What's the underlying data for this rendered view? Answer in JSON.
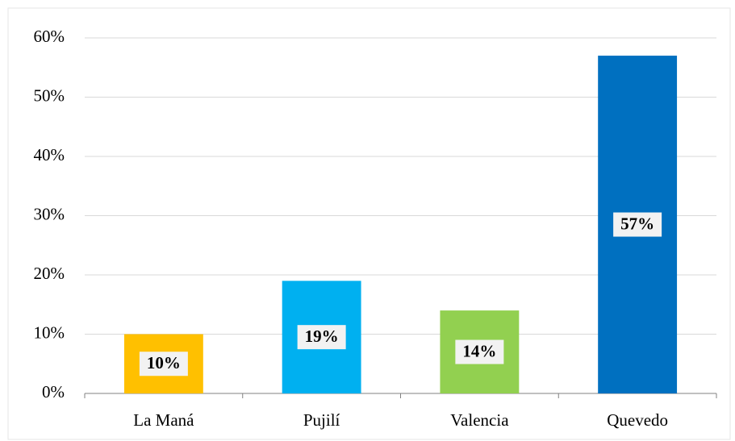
{
  "chart_data": {
    "type": "bar",
    "categories": [
      "La Maná",
      "Pujilí",
      "Valencia",
      "Quevedo"
    ],
    "values": [
      10,
      19,
      14,
      57
    ],
    "value_labels": [
      "10%",
      "19%",
      "14%",
      "57%"
    ],
    "colors": [
      "#ffc000",
      "#00b0f0",
      "#92d050",
      "#0070c0"
    ],
    "ylim": [
      0,
      60
    ],
    "yticks": [
      {
        "value": 0,
        "label": "0%"
      },
      {
        "value": 10,
        "label": "10%"
      },
      {
        "value": 20,
        "label": "20%"
      },
      {
        "value": 30,
        "label": "30%"
      },
      {
        "value": 40,
        "label": "40%"
      },
      {
        "value": 50,
        "label": "50%"
      },
      {
        "value": 60,
        "label": "60%"
      }
    ],
    "grid": true
  }
}
